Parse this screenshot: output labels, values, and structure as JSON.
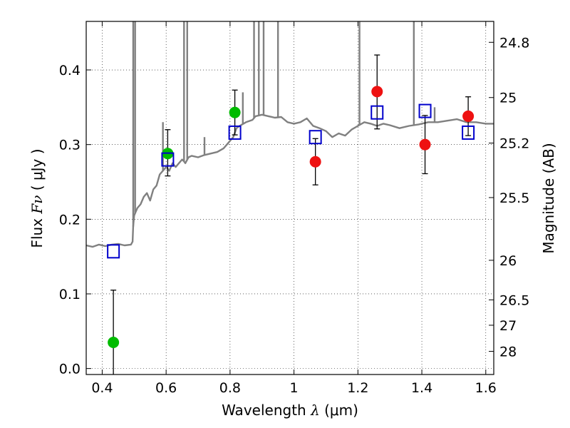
{
  "chart_data": {
    "type": "scatter",
    "xlabel": {
      "prefix": "Wavelength  ",
      "symbol": "λ",
      "unit": " (μm)"
    },
    "ylabel": {
      "prefix": "Flux  ",
      "symbol": "Fν",
      "unit": "  ( μJy )"
    },
    "y2label": "Magnitude (AB)",
    "xlim": [
      0.35,
      1.625
    ],
    "ylim": [
      -0.008,
      0.465
    ],
    "x_ticks": [
      0.4,
      0.6,
      0.8,
      1.0,
      1.2,
      1.4,
      1.6
    ],
    "x_tick_labels": [
      "0.4",
      "0.6",
      "0.8",
      "1",
      "1.2",
      "1.4",
      "1.6"
    ],
    "y_ticks": [
      0.0,
      0.1,
      0.2,
      0.3,
      0.4
    ],
    "y_tick_labels": [
      "0.0",
      "0.1",
      "0.2",
      "0.3",
      "0.4"
    ],
    "y2_ticks": [
      {
        "label": "24.8",
        "flux": 0.437
      },
      {
        "label": "25",
        "flux": 0.363
      },
      {
        "label": "25.2",
        "flux": 0.302
      },
      {
        "label": "25.5",
        "flux": 0.229
      },
      {
        "label": "26",
        "flux": 0.145
      },
      {
        "label": "26.5",
        "flux": 0.092
      },
      {
        "label": "27",
        "flux": 0.058
      },
      {
        "label": "28",
        "flux": 0.023
      }
    ],
    "grid": true,
    "colors": {
      "spectrum": "#808080",
      "green": "#00bb00",
      "red": "#ee1111",
      "model_box": "#0000cc",
      "errorbar": "#000000"
    },
    "spectrum": {
      "x": [
        0.35,
        0.37,
        0.39,
        0.41,
        0.43,
        0.45,
        0.47,
        0.49,
        0.495,
        0.497,
        0.5,
        0.505,
        0.51,
        0.52,
        0.53,
        0.54,
        0.55,
        0.56,
        0.57,
        0.58,
        0.59,
        0.6,
        0.61,
        0.62,
        0.63,
        0.64,
        0.65,
        0.655,
        0.66,
        0.67,
        0.68,
        0.7,
        0.72,
        0.74,
        0.76,
        0.78,
        0.79,
        0.8,
        0.81,
        0.82,
        0.83,
        0.85,
        0.87,
        0.88,
        0.9,
        0.92,
        0.94,
        0.96,
        0.98,
        1.0,
        1.02,
        1.04,
        1.06,
        1.08,
        1.1,
        1.12,
        1.14,
        1.16,
        1.18,
        1.2,
        1.22,
        1.24,
        1.26,
        1.28,
        1.3,
        1.33,
        1.36,
        1.39,
        1.42,
        1.45,
        1.48,
        1.51,
        1.54,
        1.57,
        1.6,
        1.625
      ],
      "y": [
        0.165,
        0.163,
        0.166,
        0.164,
        0.166,
        0.167,
        0.165,
        0.166,
        0.17,
        0.19,
        0.205,
        0.21,
        0.215,
        0.22,
        0.23,
        0.235,
        0.225,
        0.24,
        0.245,
        0.26,
        0.265,
        0.27,
        0.265,
        0.275,
        0.27,
        0.275,
        0.28,
        0.278,
        0.275,
        0.283,
        0.285,
        0.283,
        0.286,
        0.288,
        0.29,
        0.295,
        0.3,
        0.305,
        0.31,
        0.322,
        0.325,
        0.33,
        0.333,
        0.338,
        0.34,
        0.338,
        0.336,
        0.337,
        0.33,
        0.328,
        0.33,
        0.335,
        0.325,
        0.322,
        0.318,
        0.31,
        0.315,
        0.312,
        0.32,
        0.325,
        0.33,
        0.328,
        0.325,
        0.328,
        0.326,
        0.322,
        0.325,
        0.327,
        0.33,
        0.33,
        0.332,
        0.334,
        0.33,
        0.33,
        0.328,
        0.328
      ]
    },
    "emission_lines": [
      {
        "x": 0.497,
        "top": 0.465
      },
      {
        "x": 0.503,
        "top": 0.465
      },
      {
        "x": 0.59,
        "top": 0.33
      },
      {
        "x": 0.656,
        "top": 0.465
      },
      {
        "x": 0.666,
        "top": 0.465
      },
      {
        "x": 0.72,
        "top": 0.31
      },
      {
        "x": 0.84,
        "top": 0.37
      },
      {
        "x": 0.875,
        "top": 0.465
      },
      {
        "x": 0.89,
        "top": 0.465
      },
      {
        "x": 0.905,
        "top": 0.465
      },
      {
        "x": 0.95,
        "top": 0.465
      },
      {
        "x": 1.205,
        "top": 0.465
      },
      {
        "x": 1.375,
        "top": 0.465
      },
      {
        "x": 1.44,
        "top": 0.35
      }
    ],
    "points": [
      {
        "x": 0.435,
        "y": 0.035,
        "err_lo": 0.045,
        "err_hi": 0.07,
        "color": "green"
      },
      {
        "x": 0.605,
        "y": 0.288,
        "err_lo": 0.03,
        "err_hi": 0.032,
        "color": "green"
      },
      {
        "x": 0.815,
        "y": 0.343,
        "err_lo": 0.03,
        "err_hi": 0.03,
        "color": "green"
      },
      {
        "x": 1.067,
        "y": 0.277,
        "err_lo": 0.031,
        "err_hi": 0.031,
        "color": "red"
      },
      {
        "x": 1.26,
        "y": 0.371,
        "err_lo": 0.05,
        "err_hi": 0.049,
        "color": "red"
      },
      {
        "x": 1.41,
        "y": 0.3,
        "err_lo": 0.039,
        "err_hi": 0.039,
        "color": "red"
      },
      {
        "x": 1.545,
        "y": 0.338,
        "err_lo": 0.026,
        "err_hi": 0.026,
        "color": "red"
      }
    ],
    "model_points": [
      {
        "x": 0.435,
        "y": 0.157
      },
      {
        "x": 0.605,
        "y": 0.28
      },
      {
        "x": 0.815,
        "y": 0.316
      },
      {
        "x": 1.067,
        "y": 0.31
      },
      {
        "x": 1.26,
        "y": 0.343
      },
      {
        "x": 1.41,
        "y": 0.345
      },
      {
        "x": 1.545,
        "y": 0.316
      }
    ]
  }
}
